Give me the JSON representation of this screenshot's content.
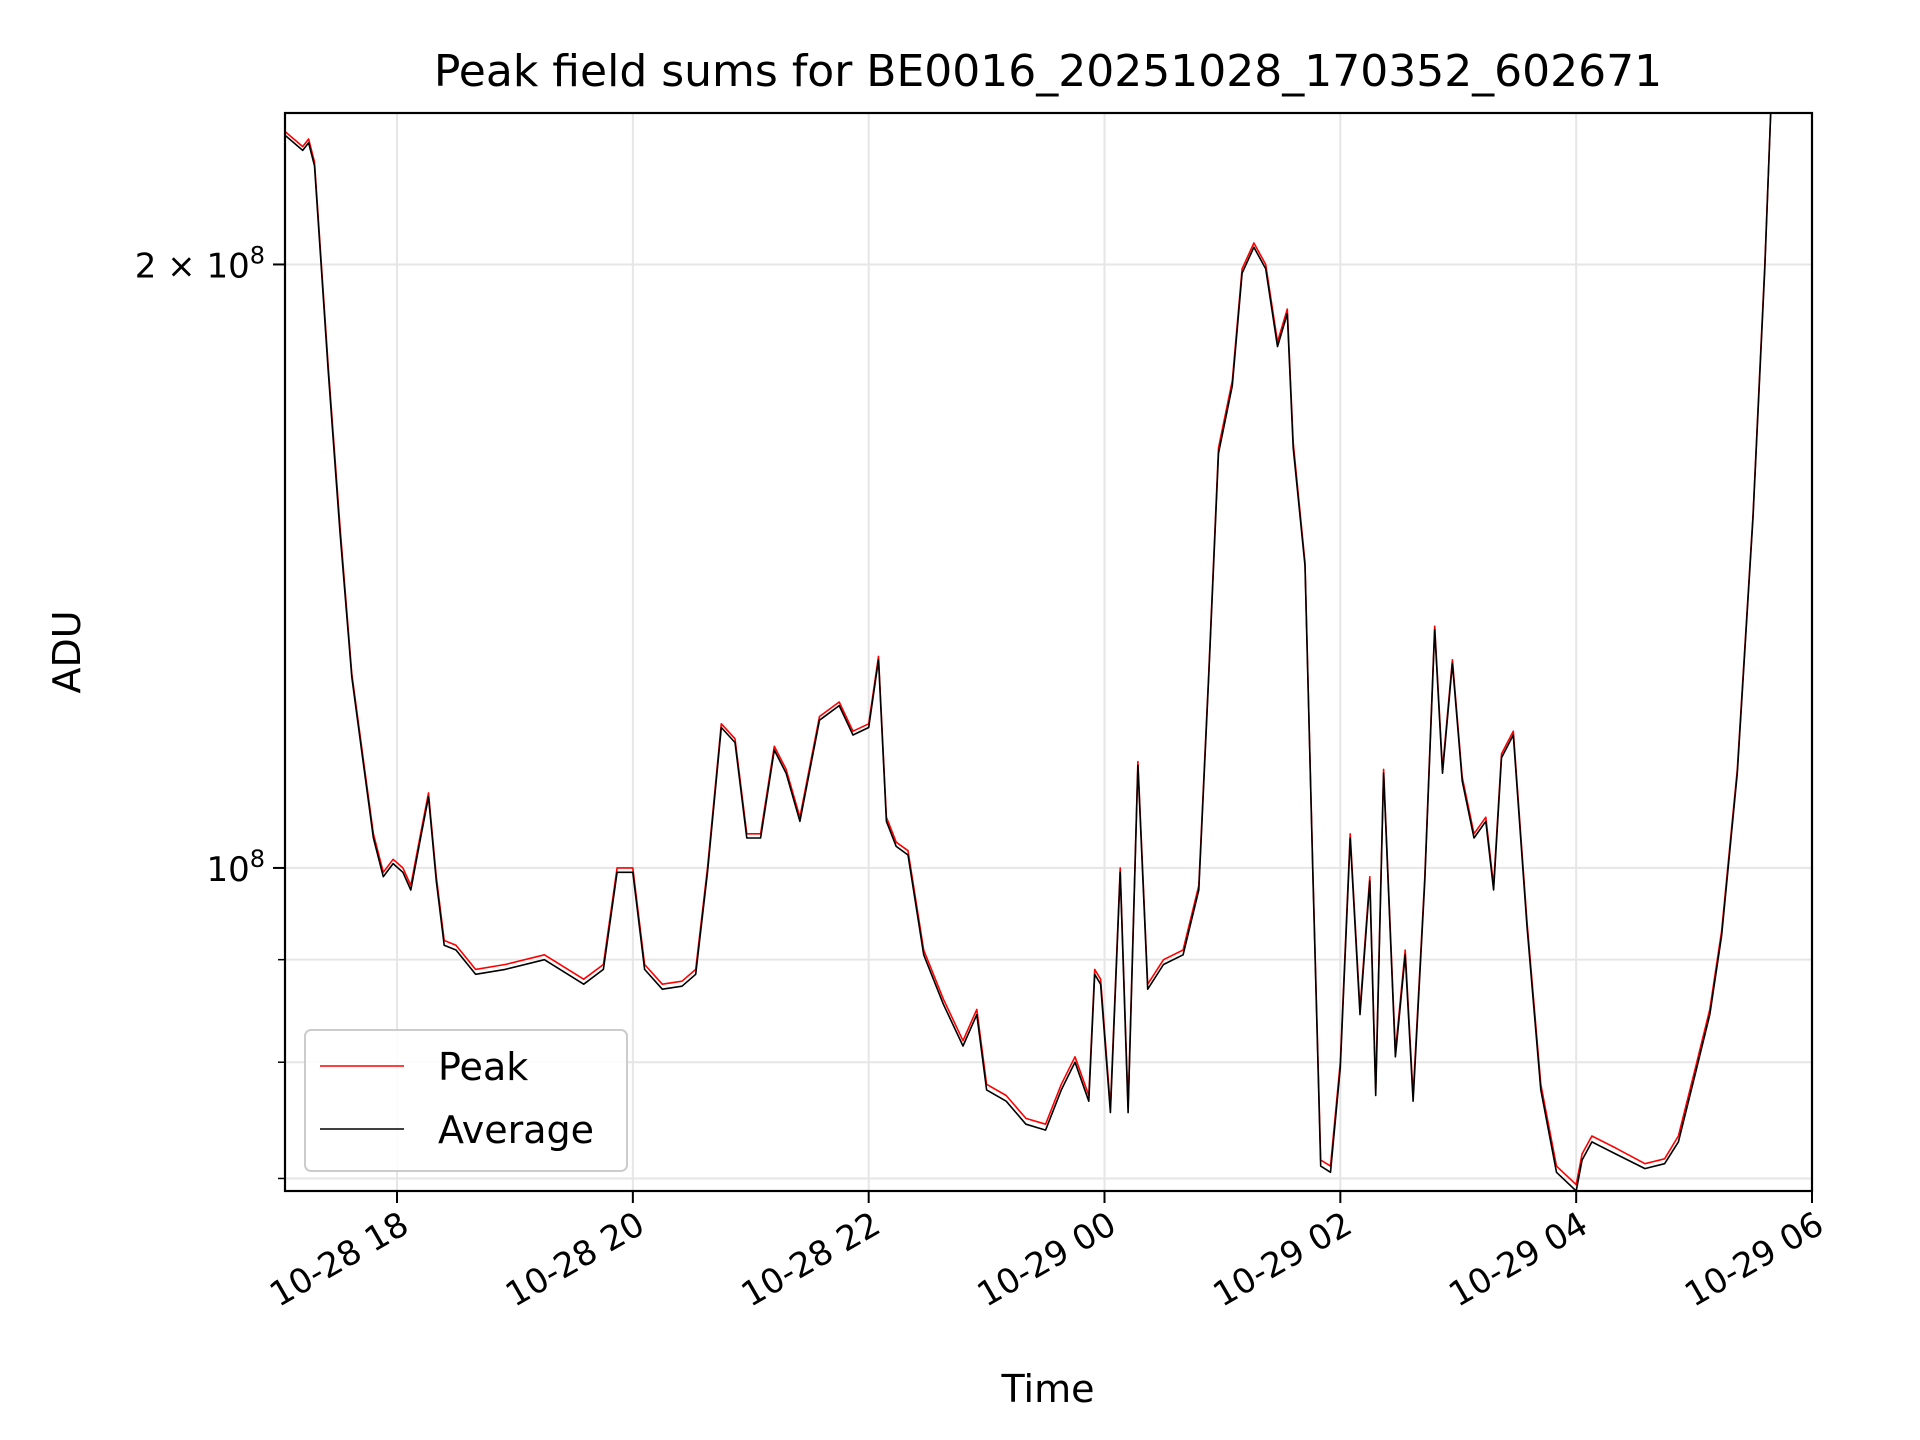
{
  "chart_data": {
    "type": "line",
    "title": "Peak field sums for BE0016_20251028_170352_602671",
    "xlabel": "Time",
    "ylabel": "ADU",
    "yscale": "log",
    "xlim": [
      "2025-10-28 17:03",
      "2025-10-29 06:00"
    ],
    "ylim": [
      69000000,
      238000000
    ],
    "grid": true,
    "legend_position": "lower-left",
    "x_ticks": [
      {
        "value": "2025-10-28 18:00",
        "label": "10-28 18"
      },
      {
        "value": "2025-10-28 20:00",
        "label": "10-28 20"
      },
      {
        "value": "2025-10-28 22:00",
        "label": "10-28 22"
      },
      {
        "value": "2025-10-29 00:00",
        "label": "10-29 00"
      },
      {
        "value": "2025-10-29 02:00",
        "label": "10-29 02"
      },
      {
        "value": "2025-10-29 04:00",
        "label": "10-29 04"
      },
      {
        "value": "2025-10-29 06:00",
        "label": "10-29 06"
      }
    ],
    "y_ticks": [
      {
        "value": 100000000,
        "base": "10",
        "exp": "8",
        "mantissa": ""
      },
      {
        "value": 200000000,
        "base": "10",
        "exp": "8",
        "mantissa": "2 × "
      }
    ],
    "y_minor_ticks": [
      70000000,
      80000000,
      90000000
    ],
    "series": [
      {
        "name": "Peak",
        "color": "#ff0000",
        "points": [
          [
            "2025-10-28 17:03",
            233000000
          ],
          [
            "2025-10-28 17:12",
            229000000
          ],
          [
            "2025-10-28 17:15",
            231000000
          ],
          [
            "2025-10-28 17:18",
            225000000
          ],
          [
            "2025-10-28 17:25",
            178000000
          ],
          [
            "2025-10-28 17:31",
            148000000
          ],
          [
            "2025-10-28 17:37",
            125000000
          ],
          [
            "2025-10-28 17:43",
            113000000
          ],
          [
            "2025-10-28 17:48",
            104000000
          ],
          [
            "2025-10-28 17:53",
            99500000
          ],
          [
            "2025-10-28 17:58",
            101000000
          ],
          [
            "2025-10-28 18:03",
            100000000
          ],
          [
            "2025-10-28 18:07",
            98000000
          ],
          [
            "2025-10-28 18:12",
            104000000
          ],
          [
            "2025-10-28 18:16",
            109000000
          ],
          [
            "2025-10-28 18:20",
            99000000
          ],
          [
            "2025-10-28 18:24",
            92000000
          ],
          [
            "2025-10-28 18:30",
            91500000
          ],
          [
            "2025-10-28 18:40",
            89000000
          ],
          [
            "2025-10-28 18:55",
            89500000
          ],
          [
            "2025-10-28 19:15",
            90500000
          ],
          [
            "2025-10-28 19:35",
            88000000
          ],
          [
            "2025-10-28 19:45",
            89500000
          ],
          [
            "2025-10-28 19:52",
            100000000
          ],
          [
            "2025-10-28 20:00",
            100000000
          ],
          [
            "2025-10-28 20:06",
            89500000
          ],
          [
            "2025-10-28 20:15",
            87500000
          ],
          [
            "2025-10-28 20:25",
            87800000
          ],
          [
            "2025-10-28 20:32",
            89000000
          ],
          [
            "2025-10-28 20:38",
            100000000
          ],
          [
            "2025-10-28 20:45",
            118000000
          ],
          [
            "2025-10-28 20:52",
            116000000
          ],
          [
            "2025-10-28 20:58",
            104000000
          ],
          [
            "2025-10-28 21:05",
            104000000
          ],
          [
            "2025-10-28 21:12",
            115000000
          ],
          [
            "2025-10-28 21:18",
            112000000
          ],
          [
            "2025-10-28 21:25",
            106000000
          ],
          [
            "2025-10-28 21:35",
            119000000
          ],
          [
            "2025-10-28 21:45",
            121000000
          ],
          [
            "2025-10-28 21:52",
            117000000
          ],
          [
            "2025-10-28 22:00",
            118000000
          ],
          [
            "2025-10-28 22:05",
            127500000
          ],
          [
            "2025-10-28 22:09",
            106000000
          ],
          [
            "2025-10-28 22:14",
            103000000
          ],
          [
            "2025-10-28 22:20",
            102000000
          ],
          [
            "2025-10-28 22:28",
            91000000
          ],
          [
            "2025-10-28 22:38",
            86000000
          ],
          [
            "2025-10-28 22:48",
            82000000
          ],
          [
            "2025-10-28 22:55",
            85000000
          ],
          [
            "2025-10-28 23:00",
            78000000
          ],
          [
            "2025-10-28 23:10",
            77000000
          ],
          [
            "2025-10-28 23:20",
            75000000
          ],
          [
            "2025-10-28 23:30",
            74500000
          ],
          [
            "2025-10-28 23:38",
            78000000
          ],
          [
            "2025-10-28 23:45",
            80500000
          ],
          [
            "2025-10-28 23:52",
            77000000
          ],
          [
            "2025-10-28 23:55",
            89000000
          ],
          [
            "2025-10-28 23:58",
            88000000
          ],
          [
            "2025-10-29 00:03",
            76000000
          ],
          [
            "2025-10-29 00:08",
            100000000
          ],
          [
            "2025-10-29 00:12",
            76000000
          ],
          [
            "2025-10-29 00:17",
            113000000
          ],
          [
            "2025-10-29 00:22",
            87500000
          ],
          [
            "2025-10-29 00:30",
            90000000
          ],
          [
            "2025-10-29 00:40",
            91000000
          ],
          [
            "2025-10-29 00:48",
            98000000
          ],
          [
            "2025-10-29 00:53",
            125000000
          ],
          [
            "2025-10-29 00:58",
            162000000
          ],
          [
            "2025-10-29 01:05",
            175000000
          ],
          [
            "2025-10-29 01:10",
            199000000
          ],
          [
            "2025-10-29 01:16",
            205000000
          ],
          [
            "2025-10-29 01:22",
            200000000
          ],
          [
            "2025-10-29 01:28",
            183000000
          ],
          [
            "2025-10-29 01:33",
            190000000
          ],
          [
            "2025-10-29 01:36",
            163000000
          ],
          [
            "2025-10-29 01:42",
            142000000
          ],
          [
            "2025-10-29 01:46",
            100000000
          ],
          [
            "2025-10-29 01:50",
            71500000
          ],
          [
            "2025-10-29 01:55",
            71000000
          ],
          [
            "2025-10-29 02:00",
            80000000
          ],
          [
            "2025-10-29 02:05",
            104000000
          ],
          [
            "2025-10-29 02:10",
            85000000
          ],
          [
            "2025-10-29 02:15",
            99000000
          ],
          [
            "2025-10-29 02:18",
            77500000
          ],
          [
            "2025-10-29 02:22",
            112000000
          ],
          [
            "2025-10-29 02:28",
            81000000
          ],
          [
            "2025-10-29 02:33",
            91000000
          ],
          [
            "2025-10-29 02:37",
            77000000
          ],
          [
            "2025-10-29 02:43",
            99000000
          ],
          [
            "2025-10-29 02:48",
            132000000
          ],
          [
            "2025-10-29 02:52",
            112000000
          ],
          [
            "2025-10-29 02:57",
            127000000
          ],
          [
            "2025-10-29 03:02",
            111000000
          ],
          [
            "2025-10-29 03:08",
            104000000
          ],
          [
            "2025-10-29 03:14",
            106000000
          ],
          [
            "2025-10-29 03:18",
            98000000
          ],
          [
            "2025-10-29 03:22",
            114000000
          ],
          [
            "2025-10-29 03:28",
            117000000
          ],
          [
            "2025-10-29 03:35",
            94000000
          ],
          [
            "2025-10-29 03:42",
            78000000
          ],
          [
            "2025-10-29 03:50",
            71000000
          ],
          [
            "2025-10-29 04:00",
            69500000
          ],
          [
            "2025-10-29 04:03",
            72000000
          ],
          [
            "2025-10-29 04:08",
            73500000
          ],
          [
            "2025-10-29 04:20",
            72500000
          ],
          [
            "2025-10-29 04:35",
            71200000
          ],
          [
            "2025-10-29 04:45",
            71600000
          ],
          [
            "2025-10-29 04:52",
            73500000
          ],
          [
            "2025-10-29 05:00",
            79000000
          ],
          [
            "2025-10-29 05:08",
            85000000
          ],
          [
            "2025-10-29 05:14",
            93000000
          ],
          [
            "2025-10-29 05:22",
            112000000
          ],
          [
            "2025-10-29 05:30",
            150000000
          ],
          [
            "2025-10-29 05:36",
            200000000
          ],
          [
            "2025-10-29 05:39",
            238000000
          ],
          [
            "2025-10-29 05:44",
            238000000
          ]
        ]
      },
      {
        "name": "Average",
        "color": "#000000",
        "points": [
          [
            "2025-10-28 17:03",
            232000000
          ],
          [
            "2025-10-28 17:12",
            228000000
          ],
          [
            "2025-10-28 17:15",
            230000000
          ],
          [
            "2025-10-28 17:18",
            224000000
          ],
          [
            "2025-10-28 17:25",
            177000000
          ],
          [
            "2025-10-28 17:31",
            147000000
          ],
          [
            "2025-10-28 17:37",
            124500000
          ],
          [
            "2025-10-28 17:43",
            112500000
          ],
          [
            "2025-10-28 17:48",
            103500000
          ],
          [
            "2025-10-28 17:53",
            99000000
          ],
          [
            "2025-10-28 17:58",
            100500000
          ],
          [
            "2025-10-28 18:03",
            99500000
          ],
          [
            "2025-10-28 18:07",
            97500000
          ],
          [
            "2025-10-28 18:12",
            103500000
          ],
          [
            "2025-10-28 18:16",
            108500000
          ],
          [
            "2025-10-28 18:20",
            98500000
          ],
          [
            "2025-10-28 18:24",
            91500000
          ],
          [
            "2025-10-28 18:30",
            91000000
          ],
          [
            "2025-10-28 18:40",
            88500000
          ],
          [
            "2025-10-28 18:55",
            89000000
          ],
          [
            "2025-10-28 19:15",
            90000000
          ],
          [
            "2025-10-28 19:35",
            87500000
          ],
          [
            "2025-10-28 19:45",
            89000000
          ],
          [
            "2025-10-28 19:52",
            99500000
          ],
          [
            "2025-10-28 20:00",
            99500000
          ],
          [
            "2025-10-28 20:06",
            89000000
          ],
          [
            "2025-10-28 20:15",
            87000000
          ],
          [
            "2025-10-28 20:25",
            87300000
          ],
          [
            "2025-10-28 20:32",
            88500000
          ],
          [
            "2025-10-28 20:38",
            99500000
          ],
          [
            "2025-10-28 20:45",
            117500000
          ],
          [
            "2025-10-28 20:52",
            115500000
          ],
          [
            "2025-10-28 20:58",
            103500000
          ],
          [
            "2025-10-28 21:05",
            103500000
          ],
          [
            "2025-10-28 21:12",
            114500000
          ],
          [
            "2025-10-28 21:18",
            111500000
          ],
          [
            "2025-10-28 21:25",
            105500000
          ],
          [
            "2025-10-28 21:35",
            118500000
          ],
          [
            "2025-10-28 21:45",
            120500000
          ],
          [
            "2025-10-28 21:52",
            116500000
          ],
          [
            "2025-10-28 22:00",
            117500000
          ],
          [
            "2025-10-28 22:05",
            127000000
          ],
          [
            "2025-10-28 22:09",
            105500000
          ],
          [
            "2025-10-28 22:14",
            102500000
          ],
          [
            "2025-10-28 22:20",
            101500000
          ],
          [
            "2025-10-28 22:28",
            90500000
          ],
          [
            "2025-10-28 22:38",
            85500000
          ],
          [
            "2025-10-28 22:48",
            81500000
          ],
          [
            "2025-10-28 22:55",
            84500000
          ],
          [
            "2025-10-28 23:00",
            77500000
          ],
          [
            "2025-10-28 23:10",
            76500000
          ],
          [
            "2025-10-28 23:20",
            74500000
          ],
          [
            "2025-10-28 23:30",
            74000000
          ],
          [
            "2025-10-28 23:38",
            77500000
          ],
          [
            "2025-10-28 23:45",
            80000000
          ],
          [
            "2025-10-28 23:52",
            76500000
          ],
          [
            "2025-10-28 23:55",
            88500000
          ],
          [
            "2025-10-28 23:58",
            87500000
          ],
          [
            "2025-10-29 00:03",
            75500000
          ],
          [
            "2025-10-29 00:08",
            99500000
          ],
          [
            "2025-10-29 00:12",
            75500000
          ],
          [
            "2025-10-29 00:17",
            112500000
          ],
          [
            "2025-10-29 00:22",
            87000000
          ],
          [
            "2025-10-29 00:30",
            89500000
          ],
          [
            "2025-10-29 00:40",
            90500000
          ],
          [
            "2025-10-29 00:48",
            97500000
          ],
          [
            "2025-10-29 00:53",
            124500000
          ],
          [
            "2025-10-29 00:58",
            161000000
          ],
          [
            "2025-10-29 01:05",
            174000000
          ],
          [
            "2025-10-29 01:10",
            198000000
          ],
          [
            "2025-10-29 01:16",
            204000000
          ],
          [
            "2025-10-29 01:22",
            199000000
          ],
          [
            "2025-10-29 01:28",
            182000000
          ],
          [
            "2025-10-29 01:33",
            189000000
          ],
          [
            "2025-10-29 01:36",
            162000000
          ],
          [
            "2025-10-29 01:42",
            141500000
          ],
          [
            "2025-10-29 01:46",
            99500000
          ],
          [
            "2025-10-29 01:50",
            71000000
          ],
          [
            "2025-10-29 01:55",
            70500000
          ],
          [
            "2025-10-29 02:00",
            79500000
          ],
          [
            "2025-10-29 02:05",
            103500000
          ],
          [
            "2025-10-29 02:10",
            84500000
          ],
          [
            "2025-10-29 02:15",
            98500000
          ],
          [
            "2025-10-29 02:18",
            77000000
          ],
          [
            "2025-10-29 02:22",
            111500000
          ],
          [
            "2025-10-29 02:28",
            80500000
          ],
          [
            "2025-10-29 02:33",
            90500000
          ],
          [
            "2025-10-29 02:37",
            76500000
          ],
          [
            "2025-10-29 02:43",
            98500000
          ],
          [
            "2025-10-29 02:48",
            131500000
          ],
          [
            "2025-10-29 02:52",
            111500000
          ],
          [
            "2025-10-29 02:57",
            126500000
          ],
          [
            "2025-10-29 03:02",
            110500000
          ],
          [
            "2025-10-29 03:08",
            103500000
          ],
          [
            "2025-10-29 03:14",
            105500000
          ],
          [
            "2025-10-29 03:18",
            97500000
          ],
          [
            "2025-10-29 03:22",
            113500000
          ],
          [
            "2025-10-29 03:28",
            116500000
          ],
          [
            "2025-10-29 03:35",
            93500000
          ],
          [
            "2025-10-29 03:42",
            77500000
          ],
          [
            "2025-10-29 03:50",
            70500000
          ],
          [
            "2025-10-29 04:00",
            69000000
          ],
          [
            "2025-10-29 04:03",
            71500000
          ],
          [
            "2025-10-29 04:08",
            73000000
          ],
          [
            "2025-10-29 04:20",
            72000000
          ],
          [
            "2025-10-29 04:35",
            70800000
          ],
          [
            "2025-10-29 04:45",
            71200000
          ],
          [
            "2025-10-29 04:52",
            73000000
          ],
          [
            "2025-10-29 05:00",
            78500000
          ],
          [
            "2025-10-29 05:08",
            84500000
          ],
          [
            "2025-10-29 05:14",
            92500000
          ],
          [
            "2025-10-29 05:22",
            111500000
          ],
          [
            "2025-10-29 05:30",
            149500000
          ],
          [
            "2025-10-29 05:36",
            199000000
          ],
          [
            "2025-10-29 05:39",
            238000000
          ],
          [
            "2025-10-29 05:44",
            238000000
          ]
        ]
      }
    ]
  }
}
